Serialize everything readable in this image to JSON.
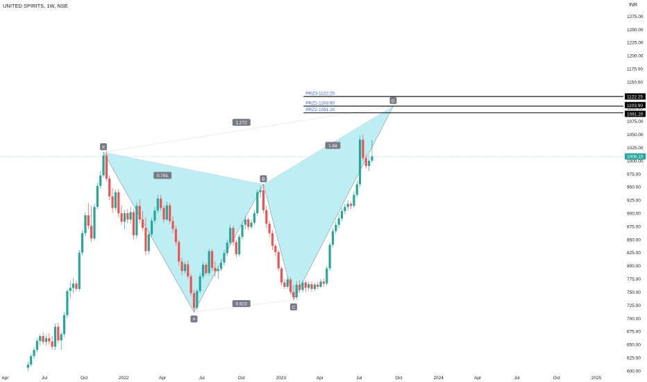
{
  "header": {
    "symbol_title": "UNITED SPIRITS, 1W, NSE",
    "currency": "INR"
  },
  "colors": {
    "up": "#26a69a",
    "down": "#ef5350",
    "pattern_fill": "#b2ebf2",
    "pattern_line": "#8a9296",
    "prz_label": "#2962ff",
    "price_line": "#26a69a"
  },
  "chart_data": {
    "type": "candlestick",
    "title": "UNITED SPIRITS, 1W, NSE",
    "y_ticks": [
      600,
      625,
      650,
      675,
      700,
      725,
      750,
      775,
      800,
      825,
      850,
      875,
      900,
      925,
      950,
      975,
      1000,
      1025,
      1050,
      1075,
      1100,
      1125,
      1150,
      1175,
      1200,
      1225,
      1250,
      1275
    ],
    "ylim": [
      592,
      1290
    ],
    "x_ticks": [
      {
        "label": "Apr",
        "date": "2021-04-01"
      },
      {
        "label": "Jul",
        "date": "2021-07-01"
      },
      {
        "label": "Oct",
        "date": "2021-10-01"
      },
      {
        "label": "2022",
        "date": "2022-01-01"
      },
      {
        "label": "Apr",
        "date": "2022-04-01"
      },
      {
        "label": "Jul",
        "date": "2022-07-01"
      },
      {
        "label": "Oct",
        "date": "2022-10-01"
      },
      {
        "label": "2023",
        "date": "2023-01-01"
      },
      {
        "label": "Apr",
        "date": "2023-04-01"
      },
      {
        "label": "Jul",
        "date": "2023-07-01"
      },
      {
        "label": "Oct",
        "date": "2023-10-01"
      },
      {
        "label": "2024",
        "date": "2024-01-01"
      },
      {
        "label": "Apr",
        "date": "2024-04-01"
      },
      {
        "label": "Jul",
        "date": "2024-07-01"
      },
      {
        "label": "Oct",
        "date": "2024-10-01"
      },
      {
        "label": "2025",
        "date": "2025-01-01"
      }
    ],
    "xlim": [
      "2021-03-20",
      "2025-03-05"
    ],
    "candles": [
      {
        "date": "2021-05-24",
        "open": 606,
        "high": 618,
        "low": 600,
        "close": 612
      },
      {
        "date": "2021-05-31",
        "open": 612,
        "high": 632,
        "low": 608,
        "close": 628
      },
      {
        "date": "2021-06-07",
        "open": 628,
        "high": 645,
        "low": 622,
        "close": 640
      },
      {
        "date": "2021-06-14",
        "open": 640,
        "high": 662,
        "low": 635,
        "close": 657
      },
      {
        "date": "2021-06-21",
        "open": 657,
        "high": 670,
        "low": 648,
        "close": 666
      },
      {
        "date": "2021-06-28",
        "open": 666,
        "high": 674,
        "low": 650,
        "close": 655
      },
      {
        "date": "2021-07-05",
        "open": 655,
        "high": 668,
        "low": 648,
        "close": 662
      },
      {
        "date": "2021-07-12",
        "open": 662,
        "high": 672,
        "low": 650,
        "close": 656
      },
      {
        "date": "2021-07-19",
        "open": 656,
        "high": 666,
        "low": 640,
        "close": 646
      },
      {
        "date": "2021-07-26",
        "open": 646,
        "high": 690,
        "low": 640,
        "close": 684
      },
      {
        "date": "2021-08-02",
        "open": 684,
        "high": 692,
        "low": 652,
        "close": 658
      },
      {
        "date": "2021-08-09",
        "open": 658,
        "high": 675,
        "low": 640,
        "close": 670
      },
      {
        "date": "2021-08-16",
        "open": 670,
        "high": 712,
        "low": 664,
        "close": 706
      },
      {
        "date": "2021-08-23",
        "open": 706,
        "high": 756,
        "low": 700,
        "close": 752
      },
      {
        "date": "2021-08-30",
        "open": 752,
        "high": 770,
        "low": 738,
        "close": 758
      },
      {
        "date": "2021-09-06",
        "open": 758,
        "high": 776,
        "low": 748,
        "close": 766
      },
      {
        "date": "2021-09-13",
        "open": 766,
        "high": 772,
        "low": 752,
        "close": 756
      },
      {
        "date": "2021-09-20",
        "open": 756,
        "high": 830,
        "low": 752,
        "close": 825
      },
      {
        "date": "2021-09-27",
        "open": 825,
        "high": 868,
        "low": 820,
        "close": 862
      },
      {
        "date": "2021-10-04",
        "open": 862,
        "high": 902,
        "low": 856,
        "close": 896
      },
      {
        "date": "2021-10-11",
        "open": 896,
        "high": 920,
        "low": 870,
        "close": 876
      },
      {
        "date": "2021-10-18",
        "open": 876,
        "high": 915,
        "low": 845,
        "close": 852
      },
      {
        "date": "2021-10-25",
        "open": 852,
        "high": 918,
        "low": 848,
        "close": 912
      },
      {
        "date": "2021-11-01",
        "open": 912,
        "high": 958,
        "low": 908,
        "close": 952
      },
      {
        "date": "2021-11-08",
        "open": 952,
        "high": 980,
        "low": 946,
        "close": 972
      },
      {
        "date": "2021-11-15",
        "open": 972,
        "high": 1016,
        "low": 968,
        "close": 1010
      },
      {
        "date": "2021-11-22",
        "open": 1010,
        "high": 1018,
        "low": 960,
        "close": 966
      },
      {
        "date": "2021-11-29",
        "open": 966,
        "high": 972,
        "low": 925,
        "close": 932
      },
      {
        "date": "2021-12-06",
        "open": 932,
        "high": 948,
        "low": 900,
        "close": 910
      },
      {
        "date": "2021-12-13",
        "open": 910,
        "high": 945,
        "low": 905,
        "close": 940
      },
      {
        "date": "2021-12-20",
        "open": 940,
        "high": 946,
        "low": 892,
        "close": 900
      },
      {
        "date": "2021-12-27",
        "open": 900,
        "high": 915,
        "low": 878,
        "close": 884
      },
      {
        "date": "2022-01-03",
        "open": 884,
        "high": 906,
        "low": 870,
        "close": 900
      },
      {
        "date": "2022-01-10",
        "open": 900,
        "high": 908,
        "low": 880,
        "close": 888
      },
      {
        "date": "2022-01-17",
        "open": 888,
        "high": 912,
        "low": 880,
        "close": 902
      },
      {
        "date": "2022-01-24",
        "open": 902,
        "high": 908,
        "low": 850,
        "close": 858
      },
      {
        "date": "2022-01-31",
        "open": 858,
        "high": 920,
        "low": 852,
        "close": 914
      },
      {
        "date": "2022-02-07",
        "open": 914,
        "high": 926,
        "low": 880,
        "close": 888
      },
      {
        "date": "2022-02-14",
        "open": 888,
        "high": 905,
        "low": 866,
        "close": 872
      },
      {
        "date": "2022-02-21",
        "open": 872,
        "high": 892,
        "low": 820,
        "close": 828
      },
      {
        "date": "2022-02-28",
        "open": 828,
        "high": 866,
        "low": 822,
        "close": 860
      },
      {
        "date": "2022-03-07",
        "open": 860,
        "high": 892,
        "low": 855,
        "close": 886
      },
      {
        "date": "2022-03-14",
        "open": 886,
        "high": 912,
        "low": 880,
        "close": 905
      },
      {
        "date": "2022-03-21",
        "open": 905,
        "high": 935,
        "low": 900,
        "close": 928
      },
      {
        "date": "2022-03-28",
        "open": 928,
        "high": 935,
        "low": 905,
        "close": 910
      },
      {
        "date": "2022-04-04",
        "open": 910,
        "high": 915,
        "low": 882,
        "close": 888
      },
      {
        "date": "2022-04-11",
        "open": 888,
        "high": 922,
        "low": 885,
        "close": 915
      },
      {
        "date": "2022-04-18",
        "open": 915,
        "high": 920,
        "low": 880,
        "close": 885
      },
      {
        "date": "2022-04-25",
        "open": 885,
        "high": 895,
        "low": 862,
        "close": 870
      },
      {
        "date": "2022-05-02",
        "open": 870,
        "high": 876,
        "low": 838,
        "close": 845
      },
      {
        "date": "2022-05-09",
        "open": 845,
        "high": 850,
        "low": 800,
        "close": 808
      },
      {
        "date": "2022-05-16",
        "open": 808,
        "high": 815,
        "low": 782,
        "close": 790
      },
      {
        "date": "2022-05-23",
        "open": 790,
        "high": 808,
        "low": 785,
        "close": 803
      },
      {
        "date": "2022-05-30",
        "open": 803,
        "high": 810,
        "low": 775,
        "close": 780
      },
      {
        "date": "2022-06-06",
        "open": 780,
        "high": 785,
        "low": 742,
        "close": 748
      },
      {
        "date": "2022-06-13",
        "open": 748,
        "high": 754,
        "low": 712,
        "close": 720
      },
      {
        "date": "2022-06-20",
        "open": 720,
        "high": 756,
        "low": 716,
        "close": 752
      },
      {
        "date": "2022-06-27",
        "open": 752,
        "high": 786,
        "low": 748,
        "close": 780
      },
      {
        "date": "2022-07-04",
        "open": 780,
        "high": 808,
        "low": 775,
        "close": 802
      },
      {
        "date": "2022-07-11",
        "open": 802,
        "high": 806,
        "low": 782,
        "close": 786
      },
      {
        "date": "2022-07-18",
        "open": 786,
        "high": 832,
        "low": 782,
        "close": 828
      },
      {
        "date": "2022-07-25",
        "open": 828,
        "high": 832,
        "low": 790,
        "close": 796
      },
      {
        "date": "2022-08-01",
        "open": 796,
        "high": 808,
        "low": 780,
        "close": 790
      },
      {
        "date": "2022-08-08",
        "open": 790,
        "high": 800,
        "low": 775,
        "close": 794
      },
      {
        "date": "2022-08-15",
        "open": 794,
        "high": 812,
        "low": 790,
        "close": 806
      },
      {
        "date": "2022-08-22",
        "open": 806,
        "high": 830,
        "low": 800,
        "close": 824
      },
      {
        "date": "2022-08-29",
        "open": 824,
        "high": 850,
        "low": 818,
        "close": 844
      },
      {
        "date": "2022-09-05",
        "open": 844,
        "high": 878,
        "low": 840,
        "close": 872
      },
      {
        "date": "2022-09-12",
        "open": 872,
        "high": 876,
        "low": 838,
        "close": 845
      },
      {
        "date": "2022-09-19",
        "open": 845,
        "high": 850,
        "low": 816,
        "close": 822
      },
      {
        "date": "2022-09-26",
        "open": 822,
        "high": 860,
        "low": 818,
        "close": 855
      },
      {
        "date": "2022-10-03",
        "open": 855,
        "high": 884,
        "low": 850,
        "close": 878
      },
      {
        "date": "2022-10-10",
        "open": 878,
        "high": 895,
        "low": 870,
        "close": 888
      },
      {
        "date": "2022-10-17",
        "open": 888,
        "high": 892,
        "low": 868,
        "close": 874
      },
      {
        "date": "2022-10-24",
        "open": 874,
        "high": 888,
        "low": 870,
        "close": 882
      },
      {
        "date": "2022-10-31",
        "open": 882,
        "high": 906,
        "low": 878,
        "close": 900
      },
      {
        "date": "2022-11-07",
        "open": 900,
        "high": 945,
        "low": 895,
        "close": 940
      },
      {
        "date": "2022-11-14",
        "open": 940,
        "high": 952,
        "low": 930,
        "close": 944
      },
      {
        "date": "2022-11-21",
        "open": 944,
        "high": 955,
        "low": 900,
        "close": 906
      },
      {
        "date": "2022-11-28",
        "open": 906,
        "high": 915,
        "low": 872,
        "close": 880
      },
      {
        "date": "2022-12-05",
        "open": 880,
        "high": 886,
        "low": 855,
        "close": 862
      },
      {
        "date": "2022-12-12",
        "open": 862,
        "high": 868,
        "low": 830,
        "close": 838
      },
      {
        "date": "2022-12-19",
        "open": 838,
        "high": 842,
        "low": 818,
        "close": 826
      },
      {
        "date": "2022-12-26",
        "open": 826,
        "high": 830,
        "low": 790,
        "close": 795
      },
      {
        "date": "2023-01-02",
        "open": 795,
        "high": 798,
        "low": 762,
        "close": 768
      },
      {
        "date": "2023-01-09",
        "open": 768,
        "high": 775,
        "low": 755,
        "close": 760
      },
      {
        "date": "2023-01-16",
        "open": 760,
        "high": 780,
        "low": 756,
        "close": 774
      },
      {
        "date": "2023-01-23",
        "open": 774,
        "high": 778,
        "low": 745,
        "close": 750
      },
      {
        "date": "2023-01-30",
        "open": 750,
        "high": 764,
        "low": 735,
        "close": 740
      },
      {
        "date": "2023-02-06",
        "open": 740,
        "high": 770,
        "low": 736,
        "close": 764
      },
      {
        "date": "2023-02-13",
        "open": 764,
        "high": 772,
        "low": 748,
        "close": 754
      },
      {
        "date": "2023-02-20",
        "open": 754,
        "high": 772,
        "low": 750,
        "close": 768
      },
      {
        "date": "2023-02-27",
        "open": 768,
        "high": 772,
        "low": 750,
        "close": 758
      },
      {
        "date": "2023-03-06",
        "open": 758,
        "high": 770,
        "low": 752,
        "close": 765
      },
      {
        "date": "2023-03-13",
        "open": 765,
        "high": 770,
        "low": 750,
        "close": 756
      },
      {
        "date": "2023-03-20",
        "open": 756,
        "high": 768,
        "low": 752,
        "close": 764
      },
      {
        "date": "2023-03-27",
        "open": 764,
        "high": 770,
        "low": 755,
        "close": 760
      },
      {
        "date": "2023-04-03",
        "open": 760,
        "high": 775,
        "low": 758,
        "close": 770
      },
      {
        "date": "2023-04-10",
        "open": 770,
        "high": 776,
        "low": 760,
        "close": 766
      },
      {
        "date": "2023-04-17",
        "open": 766,
        "high": 800,
        "low": 762,
        "close": 795
      },
      {
        "date": "2023-04-24",
        "open": 795,
        "high": 845,
        "low": 790,
        "close": 840
      },
      {
        "date": "2023-05-01",
        "open": 840,
        "high": 872,
        "low": 835,
        "close": 866
      },
      {
        "date": "2023-05-08",
        "open": 866,
        "high": 885,
        "low": 860,
        "close": 878
      },
      {
        "date": "2023-05-15",
        "open": 878,
        "high": 898,
        "low": 872,
        "close": 890
      },
      {
        "date": "2023-05-22",
        "open": 890,
        "high": 910,
        "low": 885,
        "close": 904
      },
      {
        "date": "2023-05-29",
        "open": 904,
        "high": 918,
        "low": 898,
        "close": 912
      },
      {
        "date": "2023-06-05",
        "open": 912,
        "high": 925,
        "low": 905,
        "close": 918
      },
      {
        "date": "2023-06-12",
        "open": 918,
        "high": 922,
        "low": 908,
        "close": 914
      },
      {
        "date": "2023-06-19",
        "open": 914,
        "high": 942,
        "low": 910,
        "close": 935
      },
      {
        "date": "2023-06-26",
        "open": 935,
        "high": 962,
        "low": 930,
        "close": 955
      },
      {
        "date": "2023-07-03",
        "open": 955,
        "high": 1048,
        "low": 950,
        "close": 1040
      },
      {
        "date": "2023-07-10",
        "open": 1040,
        "high": 1050,
        "low": 1000,
        "close": 1005
      },
      {
        "date": "2023-07-17",
        "open": 1005,
        "high": 1012,
        "low": 985,
        "close": 990
      },
      {
        "date": "2023-07-24",
        "open": 990,
        "high": 1010,
        "low": 980,
        "close": 1000
      },
      {
        "date": "2023-07-31",
        "open": 1000,
        "high": 1040,
        "low": 996,
        "close": 1008
      }
    ],
    "pattern": {
      "points": [
        {
          "label": "X",
          "date": "2021-11-15",
          "price": 1016
        },
        {
          "label": "A",
          "date": "2022-06-13",
          "price": 712
        },
        {
          "label": "B",
          "date": "2022-11-21",
          "price": 955
        },
        {
          "label": "C",
          "date": "2023-01-30",
          "price": 735
        },
        {
          "label": "D",
          "date": "2023-09-18",
          "price": 1103.9
        }
      ],
      "ratios": [
        {
          "label": "0.781",
          "date": "2022-04-01",
          "price": 972
        },
        {
          "label": "0.923",
          "date": "2022-10-01",
          "price": 728
        },
        {
          "label": "1.272",
          "date": "2022-10-01",
          "price": 1073
        },
        {
          "label": "1.68",
          "date": "2023-05-01",
          "price": 1029
        }
      ]
    },
    "prz_levels": [
      {
        "label": "PRZ3-1122.25",
        "price": 1122.25,
        "badge": "1122.25"
      },
      {
        "label": "PRZ1-1103.90",
        "price": 1103.9,
        "badge": "1103.90"
      },
      {
        "label": "PRZ2-1091.20",
        "price": 1091.2,
        "badge": "1091.20"
      }
    ],
    "prz_start_date": "2023-02-22",
    "last_price": {
      "price": 1008.15,
      "badge": "1008.15"
    }
  }
}
